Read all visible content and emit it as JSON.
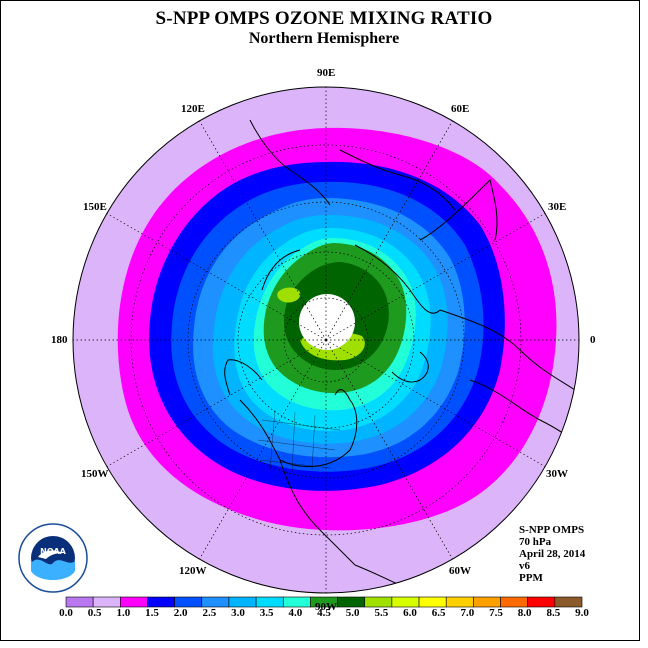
{
  "header": {
    "title": "S-NPP OMPS OZONE MIXING RATIO",
    "subtitle": "Northern Hemisphere"
  },
  "longitude_labels": [
    {
      "text": "90E",
      "angle": 90
    },
    {
      "text": "60E",
      "angle": 60
    },
    {
      "text": "30E",
      "angle": 30
    },
    {
      "text": "0",
      "angle": 0
    },
    {
      "text": "30W",
      "angle": -30
    },
    {
      "text": "60W",
      "angle": -60
    },
    {
      "text": "90W",
      "angle": -90
    },
    {
      "text": "120W",
      "angle": -120
    },
    {
      "text": "150W",
      "angle": -150
    },
    {
      "text": "180",
      "angle": 180
    },
    {
      "text": "150E",
      "angle": 150
    },
    {
      "text": "120E",
      "angle": 120
    }
  ],
  "info": {
    "instrument": "S-NPP OMPS",
    "level": "70 hPa",
    "date": "April 28, 2014",
    "version": "v6",
    "units": "PPM"
  },
  "logo": {
    "text": "NOAA"
  },
  "colorbar": {
    "labels": [
      "0.0",
      "0.5",
      "1.0",
      "1.5",
      "2.0",
      "2.5",
      "3.0",
      "3.5",
      "4.0",
      "4.5",
      "5.0",
      "5.5",
      "6.0",
      "6.5",
      "7.0",
      "7.5",
      "8.0",
      "8.5",
      "9.0"
    ],
    "colors": [
      "#b878f0",
      "#dcb4fa",
      "#ff00ff",
      "#0000ff",
      "#0050ff",
      "#1e90ff",
      "#00b4ff",
      "#00dcff",
      "#22ffd8",
      "#1e9a1e",
      "#006400",
      "#a0e000",
      "#d8ff00",
      "#ffff00",
      "#ffd000",
      "#ffa000",
      "#ff6a00",
      "#ff0000",
      "#8b5a2b"
    ]
  },
  "map_data": {
    "projection": "north-polar-stereographic",
    "field": "ozone mixing ratio",
    "missing_region": "pole (white)",
    "regions": [
      {
        "level": "1.0-1.5",
        "color": "#ff00ff"
      },
      {
        "level": "1.5-2.0",
        "color": "#0000ff"
      },
      {
        "level": "2.0-2.5",
        "color": "#0050ff"
      },
      {
        "level": "2.5-3.0",
        "color": "#1e90ff"
      },
      {
        "level": "3.0-3.5",
        "color": "#00b4ff"
      },
      {
        "level": "3.5-4.0",
        "color": "#00dcff"
      },
      {
        "level": "4.0-4.5",
        "color": "#22ffd8"
      },
      {
        "level": "4.5-5.0",
        "color": "#1e9a1e"
      },
      {
        "level": "5.0-5.5",
        "color": "#006400"
      },
      {
        "level": "5.5-6.0",
        "color": "#a0e000"
      }
    ]
  }
}
